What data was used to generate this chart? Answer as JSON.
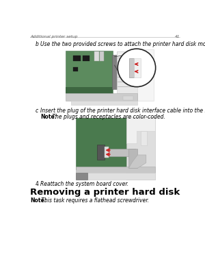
{
  "page_background": "#ffffff",
  "header_text": "Additional printer setup",
  "header_page_num": "41",
  "step_b_label": "b",
  "step_b_text": "Use the two provided screws to attach the printer hard disk mounting bracket.",
  "step_c_label": "c",
  "step_c_text": "Insert the plug of the printer hard disk interface cable into the receptacle of the system board.",
  "step_c_note_bold": "Note:",
  "step_c_note_text": " The plugs and receptacles are color‑coded.",
  "step_4_label": "4",
  "step_4_text": "Reattach the system board cover.",
  "section_title": "Removing a printer hard disk",
  "section_note_bold": "Note:",
  "section_note_text": " This task requires a flathead screwdriver.",
  "green_board": "#5c8b5e",
  "green_board_dark": "#4a7050",
  "green_board2": "#4a7a4e",
  "gray_panel": "#d8d8d8",
  "gray_panel2": "#c8c8c8",
  "gray_dark": "#909090",
  "gray_mid": "#b8b8b8",
  "gray_light": "#e0e0e0",
  "white_panel": "#f0f0f0",
  "red_arrow": "#cc2222",
  "black": "#000000",
  "text_gray": "#555555"
}
